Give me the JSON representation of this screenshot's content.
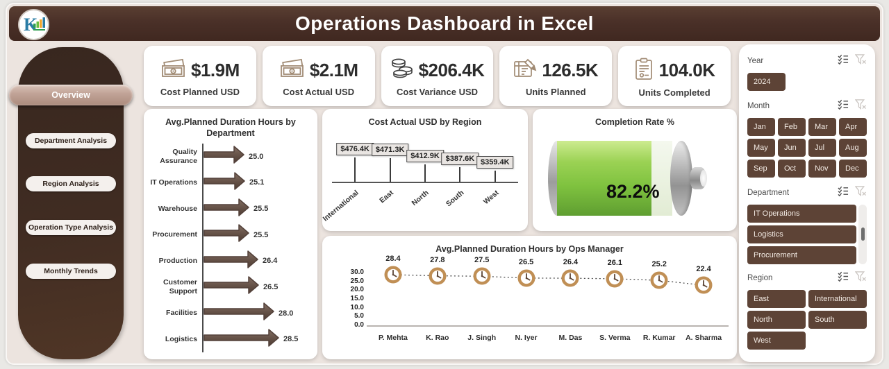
{
  "header": {
    "title": "Operations Dashboard in Excel",
    "logo_text": "K"
  },
  "nav": {
    "items": [
      {
        "label": "Overview",
        "active": true
      },
      {
        "label": "Department Analysis",
        "active": false
      },
      {
        "label": "Region Analysis",
        "active": false
      },
      {
        "label": "Operation Type Analysis",
        "active": false
      },
      {
        "label": "Monthly Trends",
        "active": false
      }
    ]
  },
  "kpis": [
    {
      "icon": "banknote-icon",
      "value": "$1.9M",
      "label": "Cost Planned USD"
    },
    {
      "icon": "banknote-icon",
      "value": "$2.1M",
      "label": "Cost Actual USD"
    },
    {
      "icon": "coins-icon",
      "value": "$206.4K",
      "label": "Cost Variance USD"
    },
    {
      "icon": "plan-icon",
      "value": "126.5K",
      "label": "Units Planned"
    },
    {
      "icon": "clipboard-icon",
      "value": "104.0K",
      "label": "Units Completed"
    }
  ],
  "slicers": [
    {
      "title": "Year",
      "items": [
        "2024"
      ],
      "columns": 3,
      "scrollbar": false
    },
    {
      "title": "Month",
      "items": [
        "Jan",
        "Feb",
        "Mar",
        "Apr",
        "May",
        "Jun",
        "Jul",
        "Aug",
        "Sep",
        "Oct",
        "Nov",
        "Dec"
      ],
      "columns": 4,
      "scrollbar": false
    },
    {
      "title": "Department",
      "items": [
        "IT Operations",
        "Logistics",
        "Procurement"
      ],
      "columns": 1,
      "scrollbar": true
    },
    {
      "title": "Region",
      "items": [
        "East",
        "International",
        "North",
        "South",
        "West"
      ],
      "columns": 2,
      "scrollbar": false
    }
  ],
  "colors": {
    "header_brown": "#4a3028",
    "slicer_brown": "#5d4336",
    "active_nav_tan": "#c0a296",
    "arrow_brown": "#6a564b",
    "clock_tan": "#c08f55",
    "battery_green": "#7fc23f"
  },
  "chart_data": [
    {
      "type": "bar",
      "variant": "horizontal-arrow",
      "title": "Avg.Planned Duration Hours by Department",
      "categories": [
        "Quality Assurance",
        "IT Operations",
        "Warehouse",
        "Procurement",
        "Production",
        "Customer Support",
        "Facilities",
        "Logistics"
      ],
      "values": [
        25.0,
        25.1,
        25.5,
        25.5,
        26.4,
        26.5,
        28.0,
        28.5
      ],
      "value_labels": [
        "25.0",
        "25.1",
        "25.5",
        "25.5",
        "26.4",
        "26.5",
        "28.0",
        "28.5"
      ],
      "xlim": [
        22,
        29
      ],
      "xlabel": "",
      "ylabel": ""
    },
    {
      "type": "bar",
      "variant": "lollipop-label",
      "title": "Cost Actual USD by Region",
      "categories": [
        "International",
        "East",
        "North",
        "South",
        "West"
      ],
      "values": [
        476.4,
        471.3,
        412.9,
        387.6,
        359.4
      ],
      "value_labels": [
        "$476.4K",
        "$471.3K",
        "$412.9K",
        "$387.6K",
        "$359.4K"
      ],
      "unit": "K USD"
    },
    {
      "type": "gauge",
      "variant": "battery",
      "title": "Completion Rate %",
      "value": 82.2,
      "display": "82.2%",
      "min": 0,
      "max": 100
    },
    {
      "type": "line",
      "variant": "clock-markers-dotted",
      "title": "Avg.Planned Duration Hours by Ops Manager",
      "categories": [
        "P. Mehta",
        "K. Rao",
        "J. Singh",
        "N. Iyer",
        "M. Das",
        "S. Verma",
        "R. Kumar",
        "A. Sharma"
      ],
      "values": [
        28.4,
        27.8,
        27.5,
        26.5,
        26.4,
        26.1,
        25.2,
        22.4
      ],
      "value_labels": [
        "28.4",
        "27.8",
        "27.5",
        "26.5",
        "26.4",
        "26.1",
        "25.2",
        "22.4"
      ],
      "ylim": [
        0,
        30
      ],
      "yticks": [
        "30.0",
        "25.0",
        "20.0",
        "15.0",
        "10.0",
        "5.0",
        "0.0"
      ]
    }
  ]
}
